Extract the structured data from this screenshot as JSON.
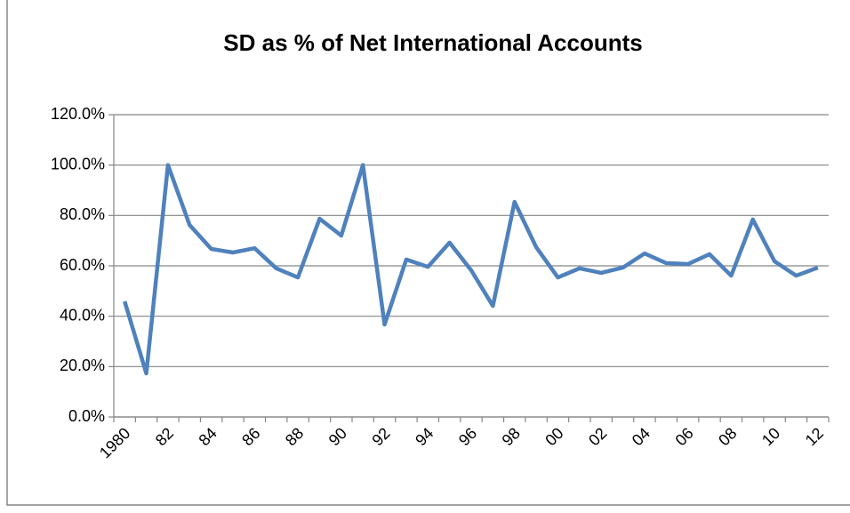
{
  "chart_data": {
    "type": "line",
    "title": "SD as % of Net International Accounts",
    "categories": [
      "1980",
      null,
      "82",
      null,
      "84",
      null,
      "86",
      null,
      "88",
      null,
      "90",
      null,
      "92",
      null,
      "94",
      null,
      "96",
      null,
      "98",
      null,
      "00",
      null,
      "02",
      null,
      "04",
      null,
      "06",
      null,
      "08",
      null,
      "10",
      null,
      "12"
    ],
    "series": [
      {
        "name": "SD as % of Net International Accounts",
        "color": "#4f81bd",
        "values": [
          45.9,
          17.3,
          100,
          76.2,
          66.7,
          65.3,
          67,
          59,
          55.4,
          78.7,
          72,
          100,
          36.7,
          62.5,
          59.6,
          69.2,
          58.2,
          44.1,
          85.4,
          67.4,
          55.4,
          59,
          57.2,
          59.3,
          64.9,
          61.1,
          60.7,
          64.6,
          56.1,
          78.4,
          61.8,
          56.1,
          59.3
        ]
      }
    ],
    "ylim": [
      0,
      120
    ],
    "yticks": [
      {
        "value": 0,
        "label": "0.0%"
      },
      {
        "value": 20,
        "label": "20.0%"
      },
      {
        "value": 40,
        "label": "40.0%"
      },
      {
        "value": 60,
        "label": "60.0%"
      },
      {
        "value": 80,
        "label": "80.0%"
      },
      {
        "value": 100,
        "label": "100.0%"
      },
      {
        "value": 120,
        "label": "120.0%"
      }
    ],
    "grid": true
  }
}
